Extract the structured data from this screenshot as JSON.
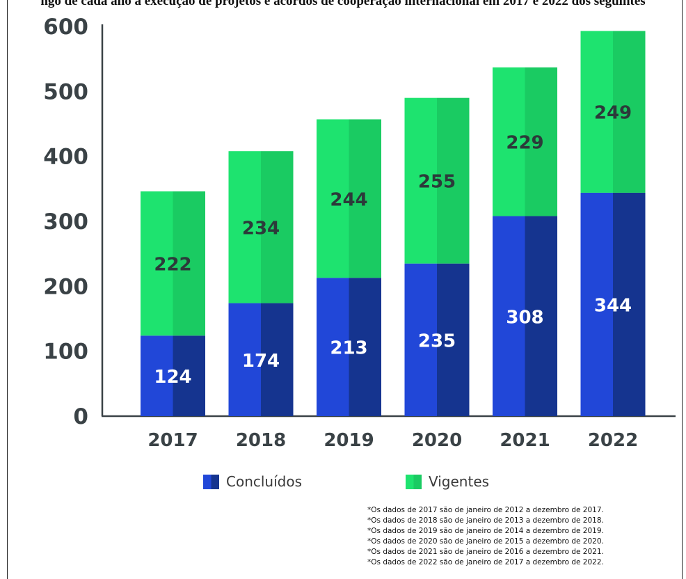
{
  "top_caption": "ngo de cada ano a execução de projetos e acordos de cooperação internacional em 2017 e 2022 dos seguintes",
  "colors": {
    "concluidos": "#2147d8",
    "concluidos_dark": "#15348f",
    "vigentes": "#1ee36f",
    "vigentes_dark": "#1acb62",
    "axis": "#3a4246",
    "label_dark": "#2c3a3a",
    "label_light": "#ffffff"
  },
  "chart_data": {
    "type": "bar",
    "stacked": true,
    "categories": [
      "2017",
      "2018",
      "2019",
      "2020",
      "2021",
      "2022"
    ],
    "series": [
      {
        "name": "Concluídos",
        "values": [
          124,
          174,
          213,
          235,
          308,
          344
        ]
      },
      {
        "name": "Vigentes",
        "values": [
          222,
          234,
          244,
          255,
          229,
          249
        ]
      }
    ],
    "y_ticks": [
      "0",
      "100",
      "200",
      "300",
      "400",
      "500",
      "600"
    ],
    "ylim": [
      0,
      600
    ],
    "grid": false,
    "legend_position": "bottom"
  },
  "legend": {
    "concluidos_label": "Concluídos",
    "vigentes_label": "Vigentes"
  },
  "footnotes": [
    "*Os dados de 2017 são de janeiro de 2012 a dezembro de 2017.",
    "*Os dados de 2018 são de janeiro de 2013 a dezembro de 2018.",
    "*Os dados de 2019 são de janeiro de 2014 a dezembro de 2019.",
    "*Os dados de 2020 são de janeiro de 2015 a dezembro de 2020.",
    "*Os dados de 2021 são de janeiro de 2016 a dezembro de 2021.",
    "*Os dados de 2022 são de janeiro de 2017 a dezembro de 2022."
  ]
}
